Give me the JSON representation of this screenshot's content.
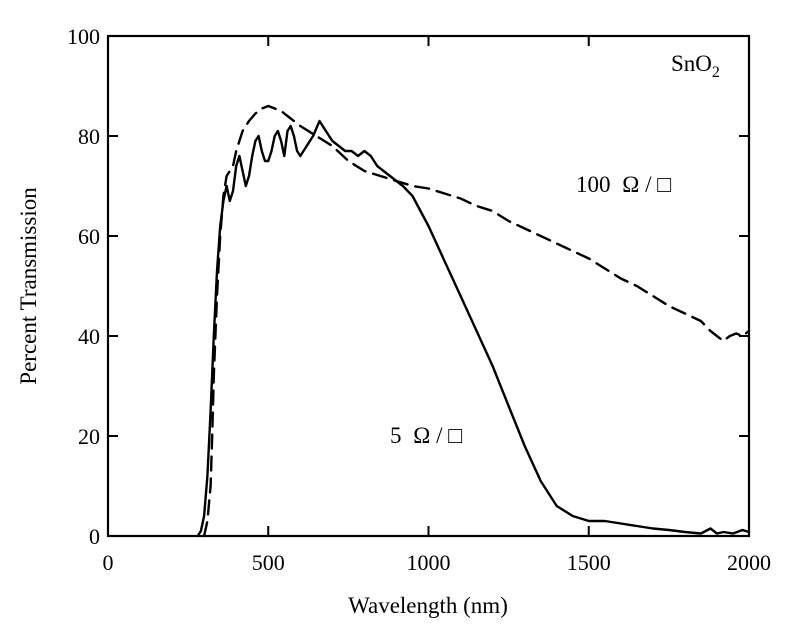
{
  "chart_data": {
    "type": "line",
    "xlabel": "Wavelength (nm)",
    "ylabel": "Percent Transmission",
    "xlim": [
      0,
      2000
    ],
    "ylim": [
      0,
      100
    ],
    "xticks": [
      0,
      500,
      1000,
      1500,
      2000
    ],
    "yticks": [
      0,
      20,
      40,
      60,
      80,
      100
    ],
    "grid": false,
    "annotations": {
      "material_base": "SnO",
      "material_sub": "2",
      "label_100_num": "100",
      "label_5_num": "5",
      "unit_symbol": "Ω / □"
    },
    "series": [
      {
        "style": "solid",
        "x": [
          280,
          290,
          300,
          310,
          320,
          330,
          340,
          350,
          360,
          370,
          380,
          390,
          400,
          410,
          420,
          430,
          440,
          450,
          460,
          470,
          480,
          490,
          500,
          510,
          520,
          530,
          540,
          550,
          560,
          570,
          580,
          590,
          600,
          620,
          640,
          660,
          670,
          680,
          700,
          720,
          740,
          760,
          780,
          800,
          820,
          840,
          860,
          880,
          900,
          920,
          950,
          1000,
          1050,
          1100,
          1150,
          1200,
          1250,
          1300,
          1350,
          1400,
          1450,
          1500,
          1550,
          1600,
          1650,
          1700,
          1750,
          1800,
          1850,
          1880,
          1900,
          1920,
          1950,
          1980,
          2000
        ],
        "y": [
          0,
          1,
          4,
          12,
          25,
          40,
          53,
          62,
          67,
          70,
          67,
          69,
          74,
          76,
          73,
          70,
          72,
          76,
          79,
          80,
          77,
          75,
          75,
          77,
          80,
          81,
          79,
          76,
          81,
          82,
          80,
          77,
          76,
          78,
          80,
          83,
          82,
          81,
          79,
          78,
          77,
          77,
          76,
          77,
          76,
          74,
          73,
          72,
          71,
          70,
          68,
          62,
          55,
          48,
          41,
          34,
          26,
          18,
          11,
          6,
          4,
          3,
          3,
          2.5,
          2,
          1.5,
          1.2,
          0.8,
          0.5,
          1.5,
          0.5,
          0.8,
          0.5,
          1.2,
          0.8
        ]
      },
      {
        "style": "dashed",
        "x": [
          300,
          310,
          320,
          325,
          330,
          340,
          350,
          360,
          370,
          380,
          390,
          400,
          420,
          440,
          460,
          480,
          500,
          520,
          540,
          560,
          580,
          600,
          650,
          700,
          750,
          800,
          850,
          900,
          950,
          1000,
          1050,
          1100,
          1150,
          1200,
          1250,
          1300,
          1350,
          1400,
          1450,
          1500,
          1550,
          1600,
          1650,
          1700,
          1750,
          1800,
          1850,
          1880,
          1900,
          1920,
          1940,
          1960,
          1980,
          2000
        ],
        "y": [
          0,
          3,
          10,
          20,
          32,
          48,
          60,
          68,
          72,
          73,
          74,
          77,
          81,
          83,
          84.5,
          85.5,
          86,
          85.5,
          85,
          84,
          83,
          82,
          80,
          78,
          75,
          73,
          72,
          71,
          70,
          69.5,
          68.5,
          67.5,
          66,
          65,
          63,
          61.5,
          60,
          58.5,
          57,
          55.5,
          53.5,
          51.5,
          50,
          48,
          46,
          44.5,
          43,
          41,
          40,
          39,
          40,
          40.5,
          40,
          41
        ]
      }
    ]
  }
}
